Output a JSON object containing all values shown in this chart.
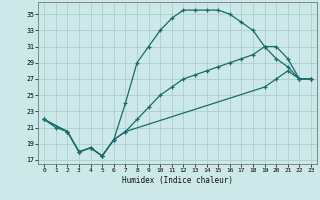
{
  "xlabel": "Humidex (Indice chaleur)",
  "bg_color": "#cce8e8",
  "grid_color": "#aacfcf",
  "line_color": "#1a6b6b",
  "xlim": [
    -0.5,
    23.5
  ],
  "ylim": [
    16.5,
    36.5
  ],
  "xticks": [
    0,
    1,
    2,
    3,
    4,
    5,
    6,
    7,
    8,
    9,
    10,
    11,
    12,
    13,
    14,
    15,
    16,
    17,
    18,
    19,
    20,
    21,
    22,
    23
  ],
  "yticks": [
    17,
    19,
    21,
    23,
    25,
    27,
    29,
    31,
    33,
    35
  ],
  "line1_x": [
    0,
    1,
    2,
    3,
    4,
    5,
    6,
    7,
    8,
    9,
    10,
    11,
    12,
    13,
    14,
    15,
    16,
    17,
    18,
    19,
    20,
    21,
    22,
    23
  ],
  "line1_y": [
    22,
    21,
    20.5,
    18,
    18.5,
    17.5,
    19.5,
    24,
    29,
    31,
    33,
    34.5,
    35.5,
    35.5,
    35.5,
    35.5,
    35,
    34,
    33,
    31,
    29.5,
    28.5,
    27,
    27
  ],
  "line2_x": [
    0,
    2,
    3,
    4,
    5,
    6,
    7,
    8,
    9,
    10,
    11,
    12,
    13,
    14,
    15,
    16,
    17,
    18,
    19,
    20,
    21,
    22,
    23
  ],
  "line2_y": [
    22,
    20.5,
    18,
    18.5,
    17.5,
    19.5,
    20.5,
    22,
    23.5,
    25,
    26,
    27,
    27.5,
    28,
    28.5,
    29,
    29.5,
    30,
    31,
    31,
    29.5,
    27,
    27
  ],
  "line3_x": [
    0,
    2,
    3,
    4,
    5,
    6,
    7,
    19,
    20,
    21,
    22,
    23
  ],
  "line3_y": [
    22,
    20.5,
    18,
    18.5,
    17.5,
    19.5,
    20.5,
    26,
    27,
    28,
    27,
    27
  ]
}
